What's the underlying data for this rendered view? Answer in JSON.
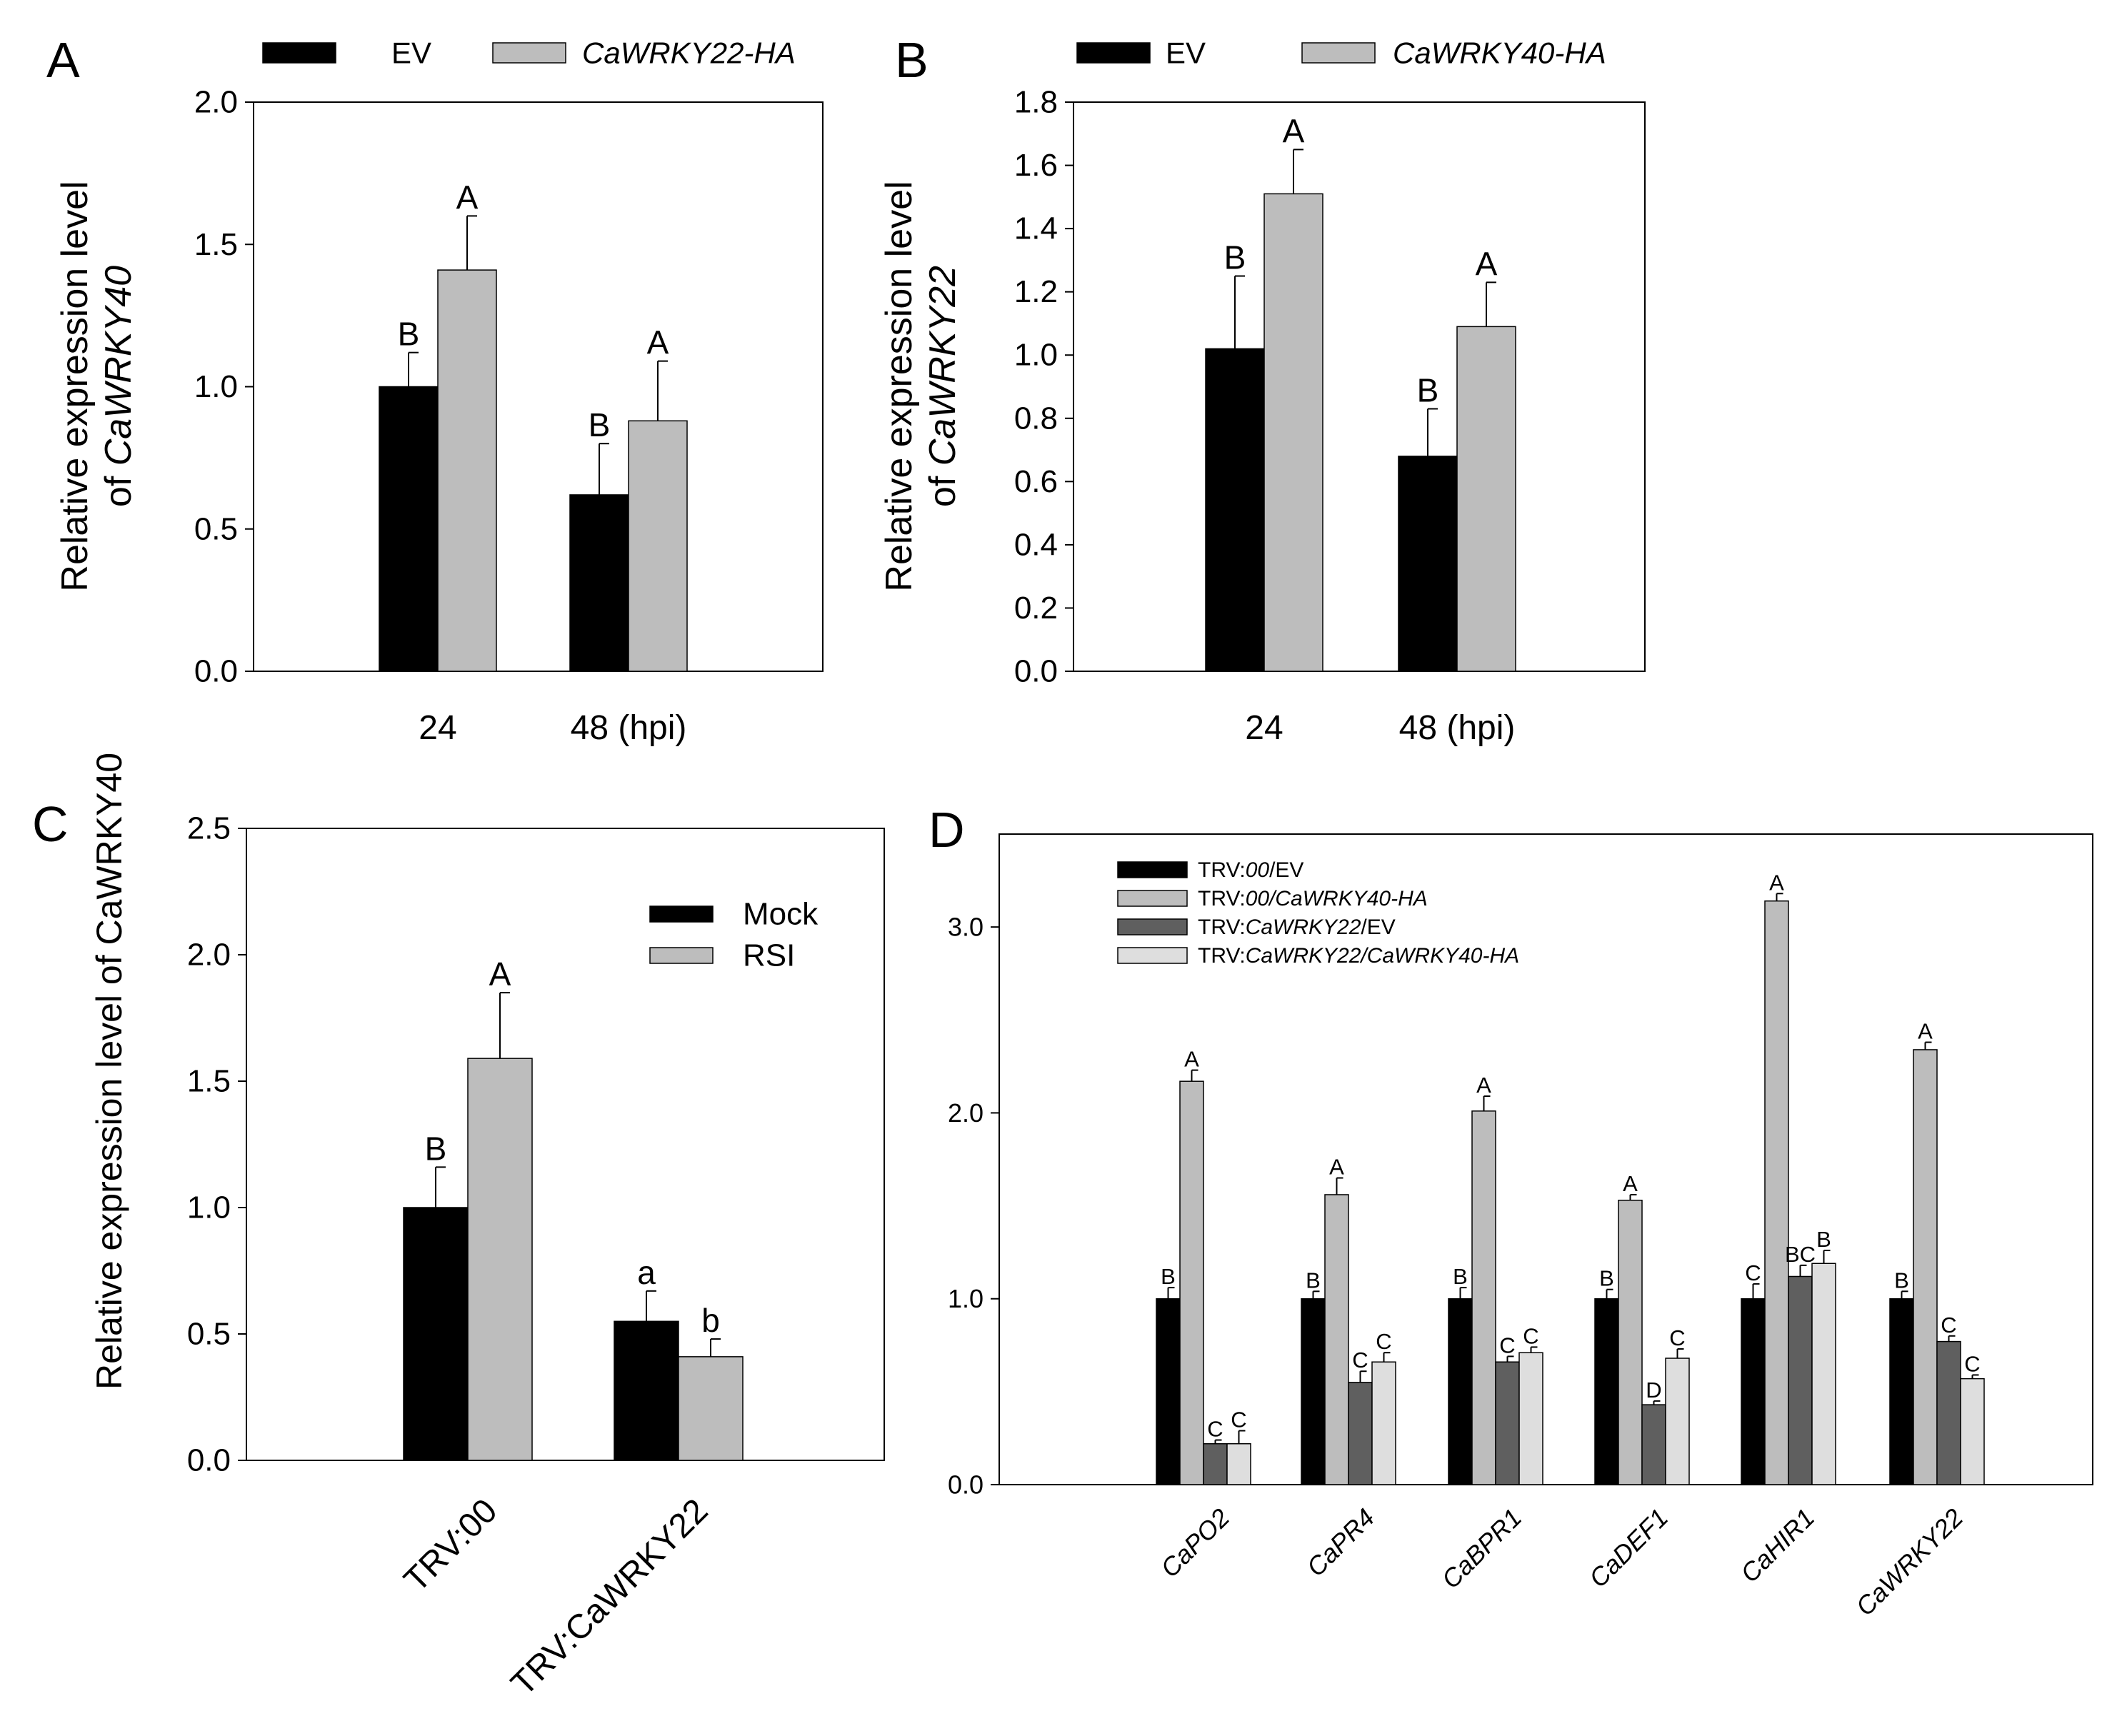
{
  "figure": {
    "colors": {
      "black": "#000000",
      "gray": "#bdbdbd",
      "darkgray": "#5f5f5f",
      "lightgray": "#dedede"
    },
    "panels": [
      "A",
      "B",
      "C",
      "D"
    ]
  },
  "chart_data": [
    {
      "panel": "A",
      "type": "bar",
      "categories": [
        "24",
        "48 (hpi)"
      ],
      "series": [
        {
          "name": "EV",
          "color": "#000000",
          "values": [
            1.0,
            0.62
          ],
          "errors": [
            0.12,
            0.18
          ],
          "letters": [
            "B",
            "B"
          ]
        },
        {
          "name": "CaWRKY22-HA",
          "color": "#bdbdbd",
          "values": [
            1.41,
            0.88
          ],
          "errors": [
            0.19,
            0.21
          ],
          "letters": [
            "A",
            "A"
          ]
        }
      ],
      "ylabel_line1": "Relative expression level",
      "ylabel_line2_prefix": "of ",
      "ylabel_gene": "CaWRKY40",
      "ylim": [
        0,
        2.0
      ],
      "yticks": [
        "0.0",
        "0.5",
        "1.0",
        "1.5",
        "2.0"
      ],
      "legend": "top, horizontal",
      "grid": false
    },
    {
      "panel": "B",
      "type": "bar",
      "categories": [
        "24",
        "48 (hpi)"
      ],
      "series": [
        {
          "name": "EV",
          "color": "#000000",
          "values": [
            1.02,
            0.68
          ],
          "errors": [
            0.23,
            0.15
          ],
          "letters": [
            "B",
            "B"
          ]
        },
        {
          "name": "CaWRKY40-HA",
          "color": "#bdbdbd",
          "values": [
            1.51,
            1.09
          ],
          "errors": [
            0.14,
            0.14
          ],
          "letters": [
            "A",
            "A"
          ]
        }
      ],
      "ylabel_line1": "Relative expression level",
      "ylabel_line2_prefix": "of ",
      "ylabel_gene": "CaWRKY22",
      "ylim": [
        0,
        1.8
      ],
      "yticks": [
        "0.0",
        "0.2",
        "0.4",
        "0.6",
        "0.8",
        "1.0",
        "1.2",
        "1.4",
        "1.6",
        "1.8"
      ],
      "legend": "top, horizontal",
      "grid": false
    },
    {
      "panel": "C",
      "type": "bar",
      "categories": [
        "TRV:00",
        "TRV:CaWRKY22"
      ],
      "series": [
        {
          "name": "Mock",
          "color": "#000000",
          "values": [
            1.0,
            0.55
          ],
          "errors": [
            0.16,
            0.12
          ],
          "letters": [
            "B",
            "a"
          ]
        },
        {
          "name": "RSI",
          "color": "#bdbdbd",
          "values": [
            1.59,
            0.41
          ],
          "errors": [
            0.26,
            0.07
          ],
          "letters": [
            "A",
            "b"
          ]
        }
      ],
      "ylabel": "Relative expression level of CaWRKY40",
      "ylim": [
        0,
        2.5
      ],
      "yticks": [
        "0.0",
        "0.5",
        "1.0",
        "1.5",
        "2.0",
        "2.5"
      ],
      "legend": "top-right, inside",
      "grid": false
    },
    {
      "panel": "D",
      "type": "bar",
      "categories": [
        "CaPO2",
        "CaPR4",
        "CaBPR1",
        "CaDEF1",
        "CaHIR1",
        "CaWRKY22"
      ],
      "series": [
        {
          "name": "TRV:00/EV",
          "color": "#000000",
          "values": [
            1.0,
            1.0,
            1.0,
            1.0,
            1.0,
            1.0
          ],
          "errors": [
            0.06,
            0.04,
            0.06,
            0.05,
            0.08,
            0.04
          ],
          "letters": [
            "B",
            "B",
            "B",
            "B",
            "C",
            "B"
          ]
        },
        {
          "name": "TRV:00/CaWRKY40-HA",
          "color": "#bdbdbd",
          "values": [
            2.17,
            1.56,
            2.01,
            1.53,
            3.14,
            2.34
          ],
          "errors": [
            0.06,
            0.09,
            0.08,
            0.03,
            0.04,
            0.04
          ],
          "letters": [
            "A",
            "A",
            "A",
            "A",
            "A",
            "A"
          ]
        },
        {
          "name": "TRV:CaWRKY22/EV",
          "color": "#5f5f5f",
          "values": [
            0.22,
            0.55,
            0.66,
            0.43,
            1.12,
            0.77
          ],
          "errors": [
            0.02,
            0.06,
            0.03,
            0.02,
            0.06,
            0.03
          ],
          "letters": [
            "C",
            "C",
            "C",
            "D",
            "BC",
            "C"
          ]
        },
        {
          "name": "TRV:CaWRKY22/CaWRKY40-HA",
          "color": "#dedede",
          "values": [
            0.22,
            0.66,
            0.71,
            0.68,
            1.19,
            0.57
          ],
          "errors": [
            0.07,
            0.05,
            0.03,
            0.05,
            0.07,
            0.02
          ],
          "letters": [
            "C",
            "C",
            "C",
            "C",
            "B",
            "C"
          ]
        }
      ],
      "legend_labels": [
        [
          "TRV:",
          "00",
          "/EV"
        ],
        [
          "TRV:",
          "00/CaWRKY40-HA",
          ""
        ],
        [
          "TRV:",
          "CaWRKY22",
          "/EV"
        ],
        [
          "TRV:",
          "CaWRKY22/CaWRKY40-HA",
          ""
        ]
      ],
      "ylim": [
        0,
        3.5
      ],
      "yticks": [
        "0.0",
        "1.0",
        "2.0",
        "3.0"
      ],
      "legend": "top-left, inside",
      "grid": false
    }
  ]
}
